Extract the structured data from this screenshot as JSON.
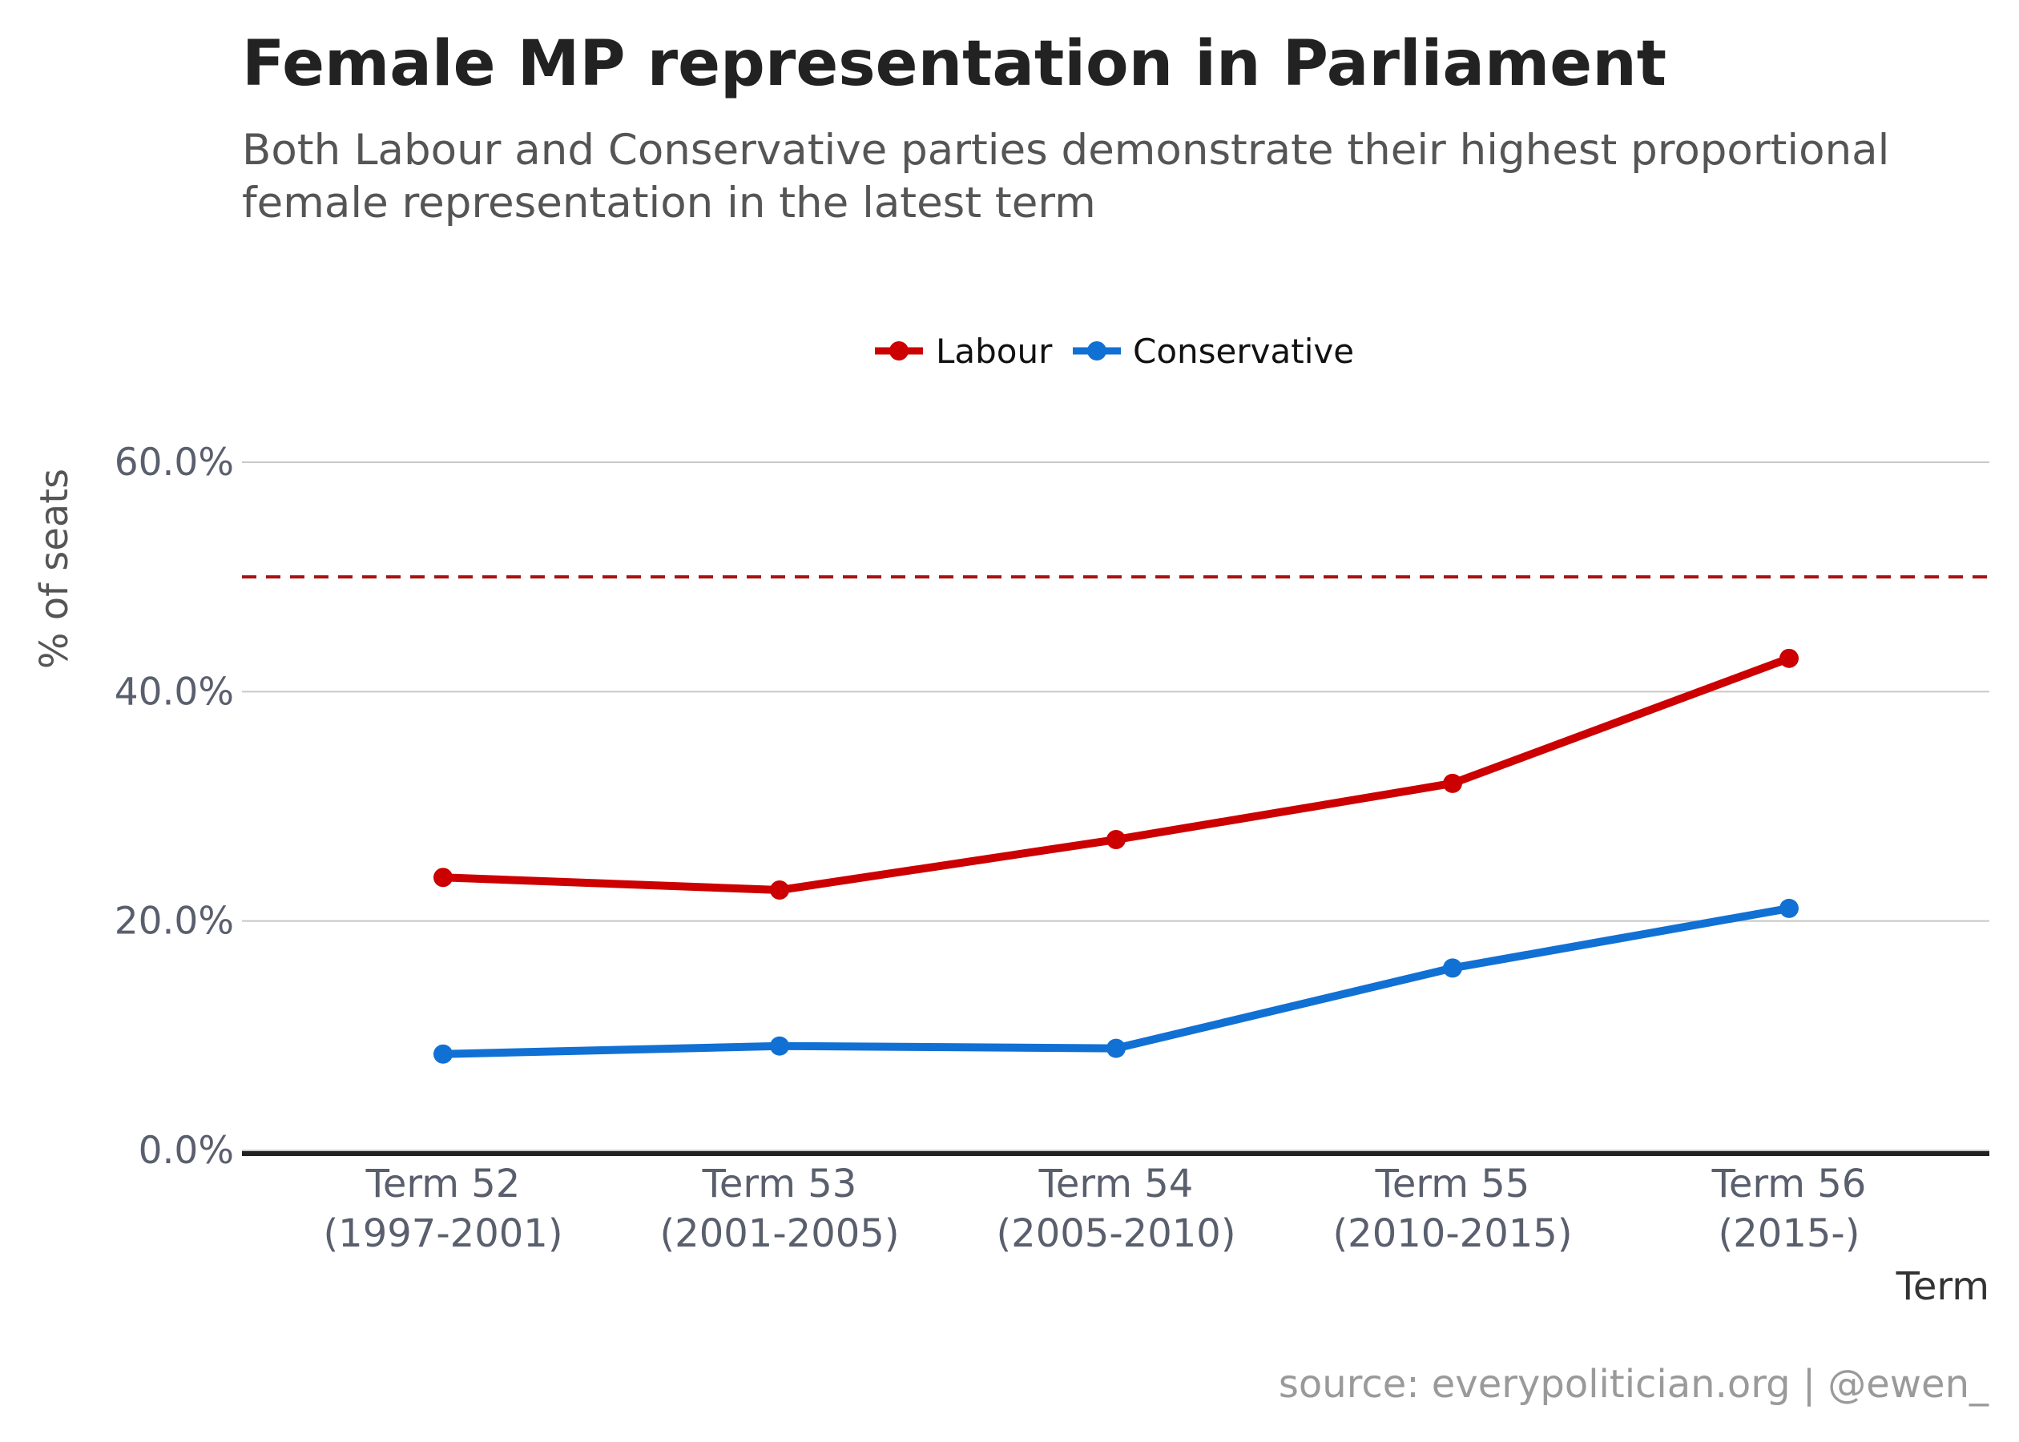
{
  "chart_data": {
    "type": "line",
    "title": "Female MP representation in Parliament",
    "subtitle": "Both Labour and Conservative parties demonstrate their highest proportional female representation in the latest term",
    "xlabel": "Term",
    "ylabel": "% of seats",
    "categories": [
      [
        "Term 52",
        "(1997-2001)"
      ],
      [
        "Term 53",
        "(2001-2005)"
      ],
      [
        "Term 54",
        "(2005-2010)"
      ],
      [
        "Term 55",
        "(2010-2015)"
      ],
      [
        "Term 56",
        "(2015-)"
      ]
    ],
    "series": [
      {
        "name": "Labour",
        "color": "#cc0000",
        "values": [
          23.8,
          22.7,
          27.1,
          32.0,
          42.9
        ]
      },
      {
        "name": "Conservative",
        "color": "#1170d4",
        "values": [
          8.4,
          9.1,
          8.9,
          15.9,
          21.1
        ]
      }
    ],
    "reference_line": {
      "value": 50,
      "color": "#aa1111",
      "style": "dashed"
    },
    "ylim": [
      0,
      60
    ],
    "yticks": [
      0,
      20,
      40,
      60
    ],
    "ytick_labels": [
      "0.0%",
      "20.0%",
      "40.0%",
      "60.0%"
    ],
    "grid": true,
    "legend_position": "top-center",
    "source": "source: everypolitician.org | @ewen_"
  }
}
